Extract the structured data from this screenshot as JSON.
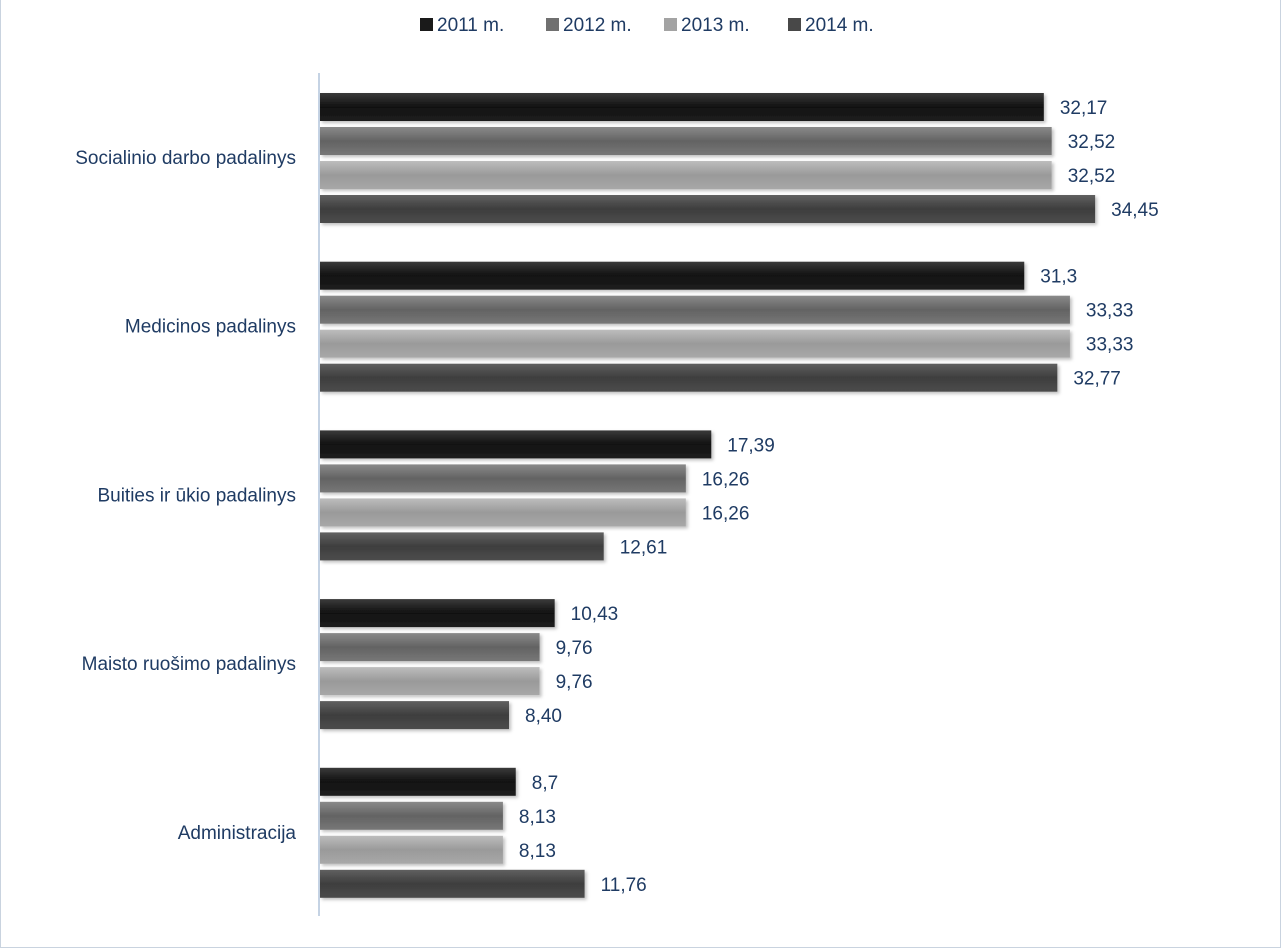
{
  "chart_data": {
    "type": "bar",
    "orientation": "horizontal",
    "title": "",
    "xlabel": "",
    "ylabel": "",
    "xlim": [
      0,
      35
    ],
    "grid": false,
    "legend_position": "top",
    "categories": [
      "Socialinio darbo padalinys",
      "Medicinos padalinys",
      "Buities ir ūkio padalinys",
      "Maisto ruošimo padalinys",
      "Administracija"
    ],
    "series": [
      {
        "name": "2011 m.",
        "color": "#1a1a1a",
        "values": [
          32.17,
          31.3,
          17.39,
          10.43,
          8.7
        ],
        "labels": [
          "32,17",
          "31,3",
          "17,39",
          "10,43",
          "8,7"
        ]
      },
      {
        "name": "2012 m.",
        "color": "#707070",
        "values": [
          32.52,
          33.33,
          16.26,
          9.76,
          8.13
        ],
        "labels": [
          "32,52",
          "33,33",
          "16,26",
          "9,76",
          "8,13"
        ]
      },
      {
        "name": "2013 m.",
        "color": "#a3a3a3",
        "values": [
          32.52,
          33.33,
          16.26,
          9.76,
          8.13
        ],
        "labels": [
          "32,52",
          "33,33",
          "16,26",
          "9,76",
          "8,13"
        ]
      },
      {
        "name": "2014 m.",
        "color": "#484848",
        "values": [
          34.45,
          32.77,
          12.61,
          8.4,
          11.76
        ],
        "labels": [
          "34,45",
          "32,77",
          "12,61",
          "8,40",
          "11,76"
        ]
      }
    ]
  }
}
